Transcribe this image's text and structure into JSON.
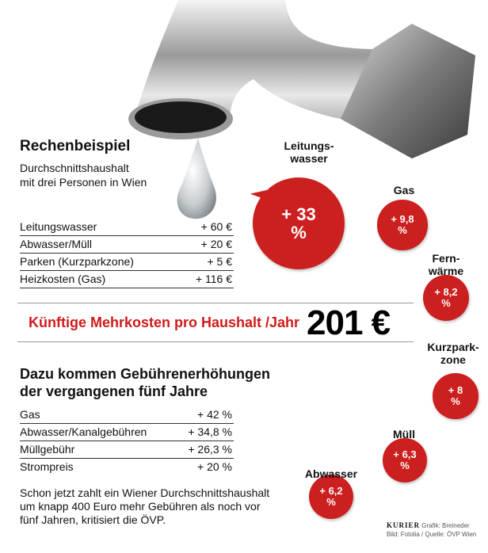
{
  "left": {
    "title": "Rechenbeispiel",
    "subtitle_lines": [
      "Durchschnittshaushalt",
      "mit drei Personen in Wien"
    ],
    "costs": [
      {
        "label": "Leitungswasser",
        "value": "+ 60 €"
      },
      {
        "label": "Abwasser/Müll",
        "value": "+ 20 €"
      },
      {
        "label": "Parken (Kurzparkzone)",
        "value": "+ 5 €"
      },
      {
        "label": "Heizkosten (Gas)",
        "value": "+ 116 €"
      }
    ],
    "total_label": "Künftige Mehrkosten pro Haushalt /Jahr",
    "total_value": "201 €",
    "fees_title_lines": [
      "Dazu kommen Gebührenerhöhungen",
      "der vergangenen fünf Jahre"
    ],
    "fees": [
      {
        "label": "Gas",
        "value": "+ 42 %"
      },
      {
        "label": "Abwasser/Kanalgebühren",
        "value": "+ 34,8 %"
      },
      {
        "label": "Müllgebühr",
        "value": "+ 26,3 %"
      },
      {
        "label": "Strompreis",
        "value": "+ 20 %"
      }
    ],
    "note_lines": [
      "Schon jetzt zahlt ein Wiener Durchschnittshaushalt",
      "um knapp 400 Euro mehr Gebühren als noch vor",
      "fünf Jahren, kritisiert die ÖVP."
    ]
  },
  "credit": {
    "brand": "KURIER",
    "line1": "Grafik: Breineder",
    "line2": "Bild: Fotolia / Quelle: ÖVP Wien"
  },
  "chart_data": {
    "type": "bubble",
    "categories": [
      "Leitungswasser",
      "Gas",
      "Fernwärme",
      "Kurzparkzone",
      "Müll",
      "Abwasser"
    ],
    "values": [
      33,
      9.8,
      8.2,
      8,
      6.3,
      6.2
    ],
    "labels": [
      {
        "name": "Leitungs-\nwasser",
        "top": "+ 33",
        "bottom": "%"
      },
      {
        "name": "Gas",
        "top": "+ 9,8",
        "bottom": "%"
      },
      {
        "name": "Fern-\nwärme",
        "top": "+ 8,2",
        "bottom": "%"
      },
      {
        "name": "Kurzpark-\nzone",
        "top": "+ 8",
        "bottom": "%"
      },
      {
        "name": "Müll",
        "top": "+ 6,3",
        "bottom": "%"
      },
      {
        "name": "Abwasser",
        "top": "+ 6,2",
        "bottom": "%"
      }
    ],
    "color": "#cc1f1f",
    "highlight_color": "#d11a1a"
  }
}
